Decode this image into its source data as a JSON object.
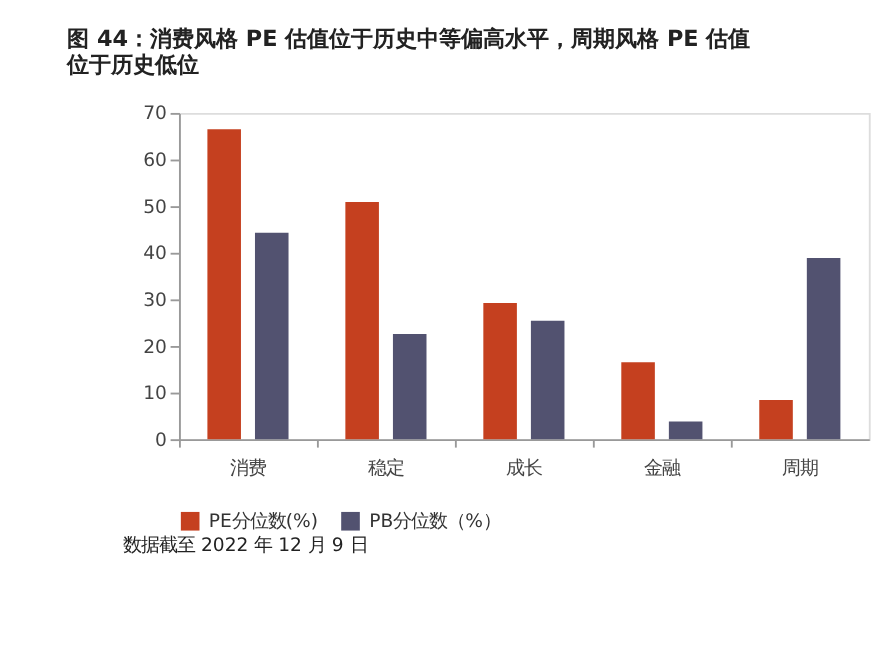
{
  "chart_data": {
    "type": "bar",
    "title": "图 44：消费风格 PE 估值位于历史中等偏高水平，周期风格 PE 估值位于历史低位",
    "categories": [
      "消费",
      "稳定",
      "成长",
      "金融",
      "周期"
    ],
    "series": [
      {
        "name": "PE分位数(%)",
        "color": "#c5401f",
        "values": [
          66.5,
          50.9,
          29.2,
          16.5,
          8.4
        ]
      },
      {
        "name": "PB分位数（%）",
        "color": "#525270",
        "values": [
          44.3,
          22.6,
          25.4,
          3.8,
          38.9
        ]
      }
    ],
    "ylim": [
      0,
      70
    ],
    "yticks": [
      0,
      10,
      20,
      30,
      40,
      50,
      60,
      70
    ],
    "grid": false,
    "legend": "bottom",
    "annotations": [
      "数据截至 2022 年 12 月 9 日"
    ]
  }
}
